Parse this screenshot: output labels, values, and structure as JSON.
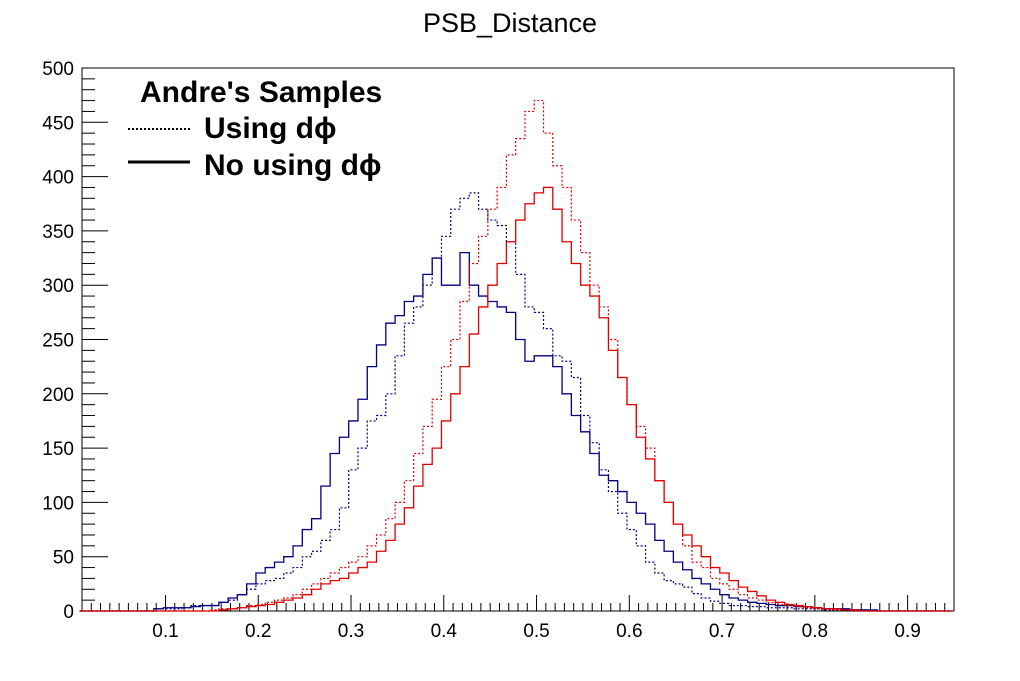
{
  "colors": {
    "blue": "#000080",
    "red": "#e00000",
    "axis": "#000000",
    "background": "#ffffff"
  },
  "chart_data": {
    "type": "line",
    "title": "PSB_Distance",
    "xlabel": "",
    "ylabel": "",
    "xlim": [
      0.01,
      0.95
    ],
    "ylim": [
      0,
      500
    ],
    "x_ticks": [
      0.1,
      0.2,
      0.3,
      0.4,
      0.5,
      0.6,
      0.7,
      0.8,
      0.9
    ],
    "x_tick_labels": [
      "0.1",
      "0.2",
      "0.3",
      "0.4",
      "0.5",
      "0.6",
      "0.7",
      "0.8",
      "0.9"
    ],
    "y_ticks": [
      0,
      50,
      100,
      150,
      200,
      250,
      300,
      350,
      400,
      450,
      500
    ],
    "y_tick_labels": [
      "0",
      "50",
      "100",
      "150",
      "200",
      "250",
      "300",
      "350",
      "400",
      "450",
      "500"
    ],
    "grid": false,
    "legend": {
      "position": "top-left",
      "header": "Andre's Samples",
      "entries": [
        {
          "label": "Using dϕ",
          "style": "dotted"
        },
        {
          "label": "No using dϕ",
          "style": "solid"
        }
      ]
    },
    "x": [
      0.0125,
      0.0225,
      0.0325,
      0.0425,
      0.0525,
      0.0625,
      0.0725,
      0.0825,
      0.0925,
      0.1025,
      0.1125,
      0.1225,
      0.1325,
      0.1425,
      0.1525,
      0.1625,
      0.1725,
      0.1825,
      0.1925,
      0.2025,
      0.2125,
      0.2225,
      0.2325,
      0.2425,
      0.2525,
      0.2625,
      0.2725,
      0.2825,
      0.2925,
      0.3025,
      0.3125,
      0.3225,
      0.3325,
      0.3425,
      0.3525,
      0.3625,
      0.3725,
      0.3825,
      0.3925,
      0.4025,
      0.4125,
      0.4225,
      0.4325,
      0.4425,
      0.4525,
      0.4625,
      0.4725,
      0.4825,
      0.4925,
      0.5025,
      0.5125,
      0.5225,
      0.5325,
      0.5425,
      0.5525,
      0.5625,
      0.5725,
      0.5825,
      0.5925,
      0.6025,
      0.6125,
      0.6225,
      0.6325,
      0.6425,
      0.6525,
      0.6625,
      0.6725,
      0.6825,
      0.6925,
      0.7025,
      0.7125,
      0.7225,
      0.7325,
      0.7425,
      0.7525,
      0.7625,
      0.7725,
      0.7825,
      0.7925,
      0.8025,
      0.8125,
      0.8225,
      0.8325,
      0.8425,
      0.8525,
      0.8625,
      0.8725,
      0.8825,
      0.8925,
      0.9025,
      0.9125,
      0.9225,
      0.9325,
      0.9425
    ],
    "series": [
      {
        "color": "#000080",
        "style": "dotted",
        "values": [
          0,
          0,
          0,
          0,
          0,
          0,
          0,
          0,
          2,
          2,
          2,
          3,
          5,
          5,
          5,
          8,
          10,
          15,
          20,
          25,
          28,
          30,
          35,
          40,
          50,
          55,
          65,
          75,
          95,
          130,
          150,
          175,
          180,
          200,
          235,
          265,
          280,
          300,
          325,
          345,
          370,
          380,
          385,
          370,
          360,
          355,
          340,
          310,
          280,
          275,
          260,
          235,
          230,
          215,
          180,
          155,
          130,
          110,
          90,
          75,
          60,
          45,
          35,
          28,
          25,
          22,
          16,
          12,
          9,
          7,
          5,
          5,
          4,
          4,
          3,
          3,
          3,
          2,
          2,
          2,
          1,
          1,
          1,
          1,
          1,
          0,
          0,
          0,
          0,
          0,
          0,
          0,
          0,
          0
        ]
      },
      {
        "color": "#000080",
        "style": "solid",
        "values": [
          0,
          0,
          0,
          0,
          0,
          0,
          0,
          0,
          2,
          3,
          3,
          3,
          4,
          5,
          5,
          8,
          12,
          15,
          25,
          35,
          40,
          45,
          50,
          60,
          75,
          85,
          115,
          145,
          160,
          175,
          195,
          225,
          245,
          265,
          272,
          285,
          290,
          310,
          325,
          300,
          300,
          330,
          300,
          290,
          285,
          280,
          275,
          250,
          230,
          235,
          235,
          225,
          200,
          180,
          165,
          145,
          125,
          120,
          110,
          100,
          90,
          80,
          65,
          55,
          45,
          38,
          30,
          25,
          20,
          15,
          12,
          10,
          8,
          7,
          6,
          5,
          5,
          4,
          4,
          3,
          2,
          2,
          2,
          1,
          1,
          1,
          0,
          0,
          0,
          0,
          0,
          0,
          0,
          0
        ]
      },
      {
        "color": "#e00000",
        "style": "dotted",
        "values": [
          0,
          0,
          0,
          0,
          0,
          0,
          0,
          0,
          0,
          0,
          0,
          0,
          0,
          0,
          1,
          2,
          2,
          3,
          5,
          6,
          8,
          10,
          12,
          15,
          20,
          25,
          30,
          35,
          40,
          45,
          50,
          60,
          70,
          85,
          100,
          120,
          145,
          170,
          195,
          225,
          250,
          285,
          320,
          345,
          370,
          390,
          420,
          435,
          460,
          470,
          440,
          410,
          390,
          360,
          330,
          300,
          280,
          250,
          215,
          190,
          170,
          150,
          120,
          100,
          80,
          60,
          45,
          40,
          30,
          25,
          20,
          15,
          12,
          10,
          8,
          6,
          5,
          4,
          3,
          2,
          2,
          1,
          1,
          0,
          0,
          0,
          0,
          0,
          0,
          0,
          0,
          0,
          0,
          0
        ]
      },
      {
        "color": "#e00000",
        "style": "solid",
        "values": [
          0,
          0,
          0,
          0,
          0,
          0,
          0,
          0,
          0,
          0,
          0,
          0,
          0,
          0,
          0,
          1,
          2,
          3,
          4,
          5,
          6,
          8,
          10,
          12,
          15,
          20,
          25,
          28,
          30,
          35,
          40,
          45,
          55,
          65,
          80,
          95,
          115,
          135,
          150,
          175,
          200,
          225,
          255,
          280,
          300,
          320,
          340,
          360,
          375,
          385,
          390,
          370,
          340,
          320,
          300,
          290,
          270,
          240,
          215,
          190,
          160,
          140,
          120,
          100,
          80,
          70,
          60,
          50,
          40,
          35,
          28,
          22,
          18,
          14,
          10,
          8,
          6,
          5,
          4,
          3,
          2,
          2,
          1,
          1,
          0,
          0,
          0,
          0,
          0,
          0,
          0,
          0,
          0,
          0
        ]
      }
    ]
  }
}
